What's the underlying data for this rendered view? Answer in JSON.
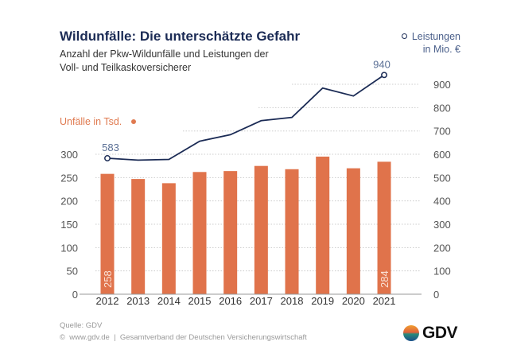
{
  "header": {
    "title": "Wildunfälle: Die unterschätzte Gefahr",
    "subtitle_line1": "Anzahl der Pkw-Wildunfälle und Leistungen der",
    "subtitle_line2": "Voll- und Teilkaskoversicherer"
  },
  "footer": {
    "source": "Quelle: GDV",
    "copyright": "©  www.gdv.de  |  Gesamtverband der Deutschen Versicherungswirtschaft",
    "logo_text": "GDV"
  },
  "chart_data": {
    "type": "bar+line",
    "categories": [
      "2012",
      "2013",
      "2014",
      "2015",
      "2016",
      "2017",
      "2018",
      "2019",
      "2020",
      "2021"
    ],
    "series": [
      {
        "name": "Unfälle in Tsd.",
        "type": "bar",
        "axis": "left",
        "color": "#e0734b",
        "values": [
          258,
          247,
          238,
          262,
          264,
          275,
          268,
          295,
          270,
          284
        ],
        "data_labels": {
          "2012": "258",
          "2021": "284"
        }
      },
      {
        "name": "Leistungen in Mio. €",
        "type": "line",
        "axis": "right",
        "color": "#1b2b55",
        "values": [
          583,
          575,
          578,
          656,
          684,
          744,
          758,
          884,
          850,
          940
        ],
        "data_labels": {
          "2012": "583",
          "2021": "940"
        }
      }
    ],
    "legend": {
      "line_line1": "Leistungen",
      "line_line2": "in Mio. €",
      "bar": "Unfälle in Tsd."
    },
    "y_left": {
      "ticks": [
        "0",
        "50",
        "100",
        "150",
        "200",
        "250",
        "300"
      ],
      "range": [
        0,
        300
      ]
    },
    "y_right": {
      "ticks": [
        "0",
        "100",
        "200",
        "300",
        "400",
        "500",
        "600",
        "700",
        "800",
        "900"
      ],
      "range": [
        0,
        900
      ]
    },
    "grid": true
  }
}
